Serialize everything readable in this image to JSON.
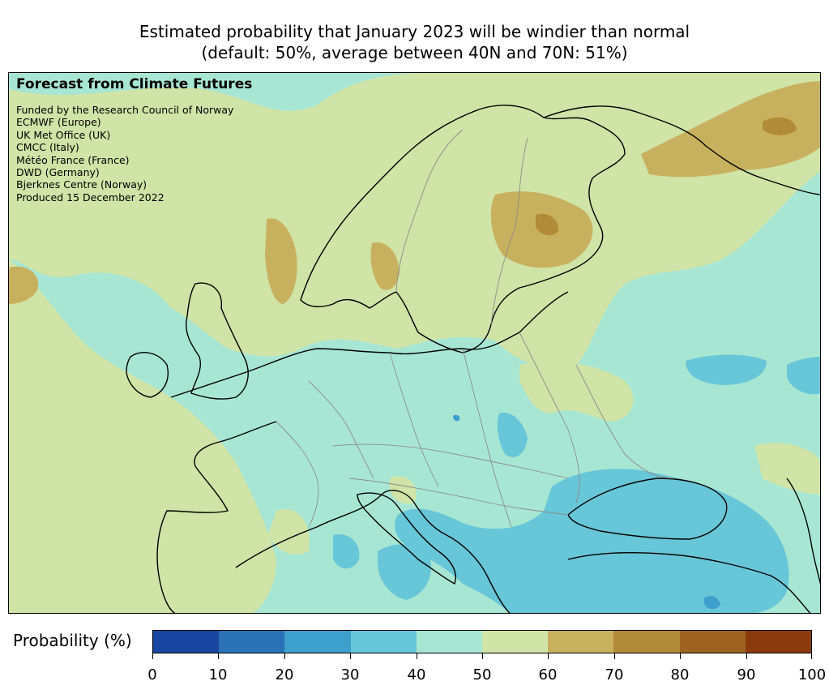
{
  "figure": {
    "title_line1": "Estimated probability that January 2023 will be windier than normal",
    "title_line2": "(default: 50%, average between 40N and 70N: 51%)"
  },
  "map": {
    "overlay_title": "Forecast from Climate Futures",
    "credits": [
      "Funded by the Research Council of Norway",
      "ECMWF (Europe)",
      "UK Met Office (UK)",
      "CMCC (Italy)",
      "Météo France (France)",
      "DWD (Germany)",
      "Bjerknes Centre (Norway)",
      "Produced 15 December 2022"
    ],
    "region": "Europe (approx. 35N–72N)",
    "dominant_bins": [
      "40-50",
      "50-60"
    ]
  },
  "colorbar": {
    "label": "Probability (%)",
    "ticks": [
      "0",
      "10",
      "20",
      "30",
      "40",
      "50",
      "60",
      "70",
      "80",
      "90",
      "100"
    ],
    "colors": [
      "#1946a0",
      "#2a72b5",
      "#3d9fcb",
      "#67c6d8",
      "#a8e6d4",
      "#cfe4a6",
      "#c8b15e",
      "#b28b38",
      "#9e6321",
      "#8b3a0e"
    ]
  },
  "palette": {
    "bin_30_40": "#67c6d8",
    "bin_40_50": "#a8e6d4",
    "bin_50_60": "#cfe4a6",
    "bin_60_70": "#c8b15e",
    "bin_70_80": "#b28b38"
  }
}
